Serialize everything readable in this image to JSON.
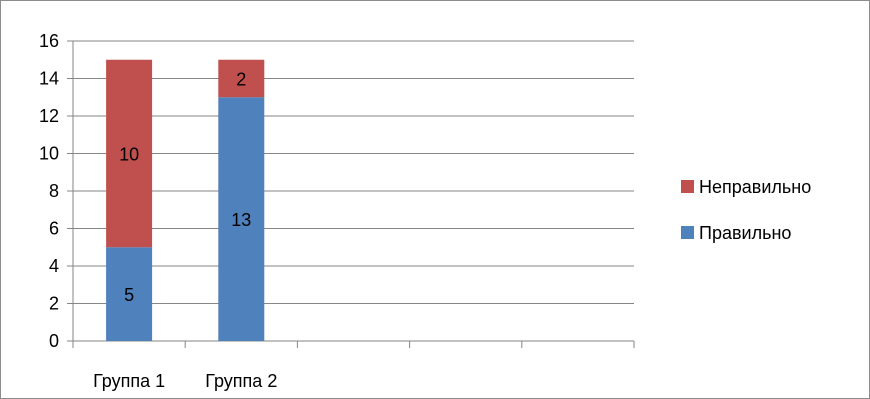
{
  "chart_data": {
    "type": "bar",
    "stacked": true,
    "categories": [
      "Группа 1",
      "Группа 2",
      "",
      "",
      ""
    ],
    "series": [
      {
        "name": "Правильно",
        "values": [
          5,
          13,
          null,
          null,
          null
        ],
        "color": "#4f81bd"
      },
      {
        "name": "Неправильно",
        "values": [
          10,
          2,
          null,
          null,
          null
        ],
        "color": "#c0504d"
      }
    ],
    "data_labels": true,
    "ylim": [
      0,
      16
    ],
    "yticks": [
      0,
      2,
      4,
      6,
      8,
      10,
      12,
      14,
      16
    ],
    "grid": true,
    "legend": "right"
  }
}
